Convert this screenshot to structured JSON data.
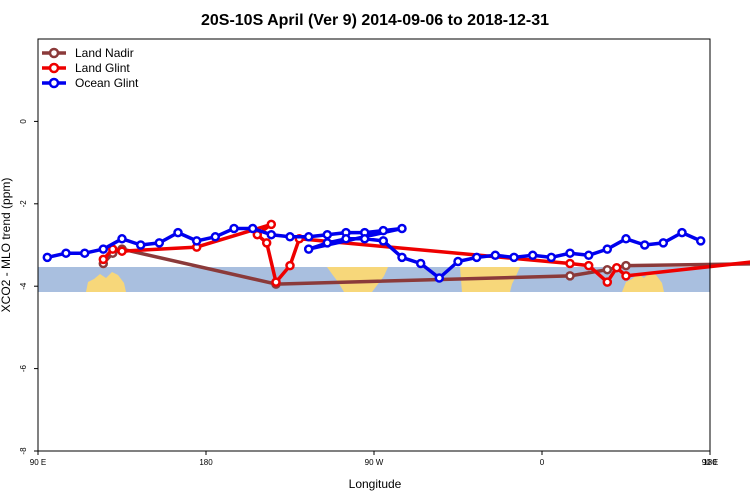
{
  "chart_data": {
    "type": "line",
    "title": "20S-10S April (Ver 9)   2014-09-06 to 2018-12-31",
    "xlabel": "Longitude",
    "ylabel": "XCO2 - MLO trend (ppm)",
    "xlim": [
      90,
      450
    ],
    "ylim": [
      -8,
      2
    ],
    "x_ticks": [
      90,
      180,
      270,
      360,
      450,
      540
    ],
    "x_tick_labels": [
      "90 E",
      "180",
      "90 W",
      "0",
      "90 E",
      "180"
    ],
    "y_ticks": [
      -8,
      -6,
      -4,
      -2,
      0
    ],
    "y_tick_labels": [
      "-8",
      "-6",
      "-4",
      "-2",
      "0"
    ],
    "legend_position": "top-left",
    "series": [
      {
        "name": "Land Nadir",
        "color": "#8B3A3A",
        "points": [
          [
            125,
            -3.45
          ],
          [
            130,
            -3.2
          ],
          [
            135,
            -3.1
          ],
          [
            217.5,
            -3.95
          ],
          [
            375,
            -3.75
          ],
          [
            395,
            -3.6
          ],
          [
            405,
            -3.5
          ],
          [
            485,
            -3.45
          ],
          [
            490,
            -3.2
          ],
          [
            495,
            -3.1
          ]
        ]
      },
      {
        "name": "Land Glint",
        "color": "#EE0000",
        "points": [
          [
            125,
            -3.35
          ],
          [
            130,
            -3.1
          ],
          [
            135,
            -3.15
          ],
          [
            175,
            -3.05
          ],
          [
            215,
            -2.5
          ],
          [
            207.5,
            -2.75
          ],
          [
            212.5,
            -2.95
          ],
          [
            217.5,
            -3.9
          ],
          [
            225,
            -3.5
          ],
          [
            230,
            -2.85
          ],
          [
            375,
            -3.45
          ],
          [
            385,
            -3.5
          ],
          [
            395,
            -3.9
          ],
          [
            400,
            -3.55
          ],
          [
            405,
            -3.75
          ],
          [
            485,
            -3.35
          ],
          [
            490,
            -3.05
          ],
          [
            495,
            -3.15
          ]
        ]
      },
      {
        "name": "Ocean Glint",
        "color": "#0000EE",
        "points": [
          [
            95,
            -3.3
          ],
          [
            105,
            -3.2
          ],
          [
            115,
            -3.2
          ],
          [
            125,
            -3.1
          ],
          [
            135,
            -2.85
          ],
          [
            145,
            -3
          ],
          [
            155,
            -2.95
          ],
          [
            165,
            -2.7
          ],
          [
            175,
            -2.9
          ],
          [
            185,
            -2.8
          ],
          [
            195,
            -2.6
          ],
          [
            205,
            -2.6
          ],
          [
            215,
            -2.75
          ],
          [
            225,
            -2.8
          ],
          [
            235,
            -2.8
          ],
          [
            245,
            -2.75
          ],
          [
            255,
            -2.7
          ],
          [
            265,
            -2.7
          ],
          [
            275,
            -2.65
          ],
          [
            285,
            -2.6
          ],
          [
            235,
            -3.1
          ],
          [
            245,
            -2.95
          ],
          [
            255,
            -2.85
          ],
          [
            265,
            -2.85
          ],
          [
            275,
            -2.9
          ],
          [
            285,
            -3.3
          ],
          [
            295,
            -3.45
          ],
          [
            305,
            -3.8
          ],
          [
            315,
            -3.4
          ],
          [
            325,
            -3.3
          ],
          [
            335,
            -3.25
          ],
          [
            345,
            -3.3
          ],
          [
            355,
            -3.25
          ],
          [
            365,
            -3.3
          ],
          [
            375,
            -3.2
          ],
          [
            385,
            -3.25
          ],
          [
            395,
            -3.1
          ],
          [
            405,
            -2.85
          ],
          [
            415,
            -3.0
          ],
          [
            425,
            -2.95
          ],
          [
            435,
            -2.7
          ],
          [
            445,
            -2.9
          ]
        ]
      }
    ]
  }
}
